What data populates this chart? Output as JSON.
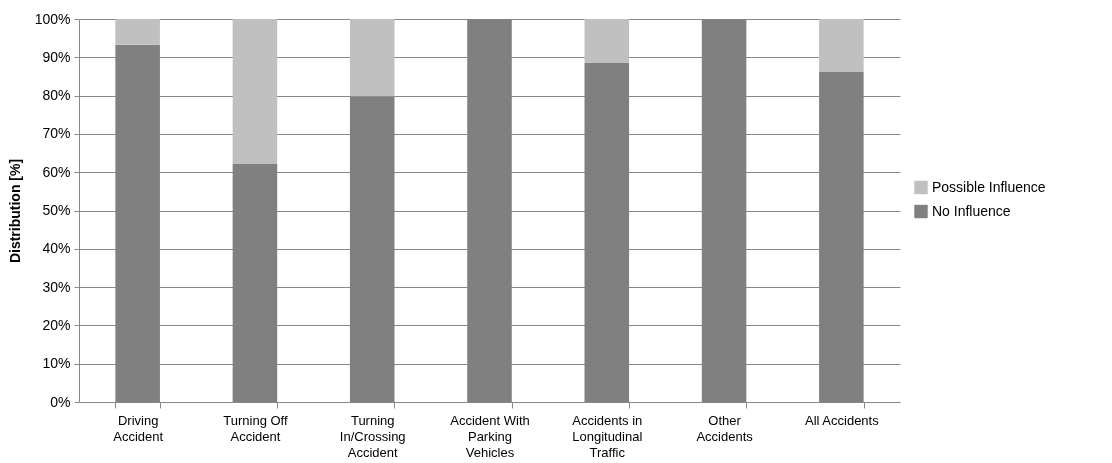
{
  "chart_data": {
    "type": "bar",
    "stacked": true,
    "ylabel": "Distribution [%]",
    "categories": [
      "Driving Accident",
      "Turning Off Accident",
      "Turning In/Crossing Accident",
      "Accident With Parking Vehicles",
      "Accidents in Longitudinal Traffic",
      "Other Accidents",
      "All Accidents"
    ],
    "series": [
      {
        "name": "No Influence",
        "color": "#808080",
        "values": [
          93.3,
          62.3,
          79.8,
          100,
          88.5,
          100,
          86.3
        ]
      },
      {
        "name": "Possible Influence",
        "color": "#c0c0c0",
        "values": [
          6.7,
          37.7,
          20.2,
          0,
          11.5,
          0,
          13.7
        ]
      }
    ],
    "ylim": [
      0,
      100
    ],
    "yticks": [
      {
        "value": 0,
        "label": "0%"
      },
      {
        "value": 10,
        "label": "10%"
      },
      {
        "value": 20,
        "label": "20%"
      },
      {
        "value": 30,
        "label": "30%"
      },
      {
        "value": 40,
        "label": "40%"
      },
      {
        "value": 50,
        "label": "50%"
      },
      {
        "value": 60,
        "label": "60%"
      },
      {
        "value": 70,
        "label": "70%"
      },
      {
        "value": 80,
        "label": "80%"
      },
      {
        "value": 90,
        "label": "90%"
      },
      {
        "value": 100,
        "label": "100%"
      }
    ],
    "grid": "y",
    "legend": "right"
  }
}
